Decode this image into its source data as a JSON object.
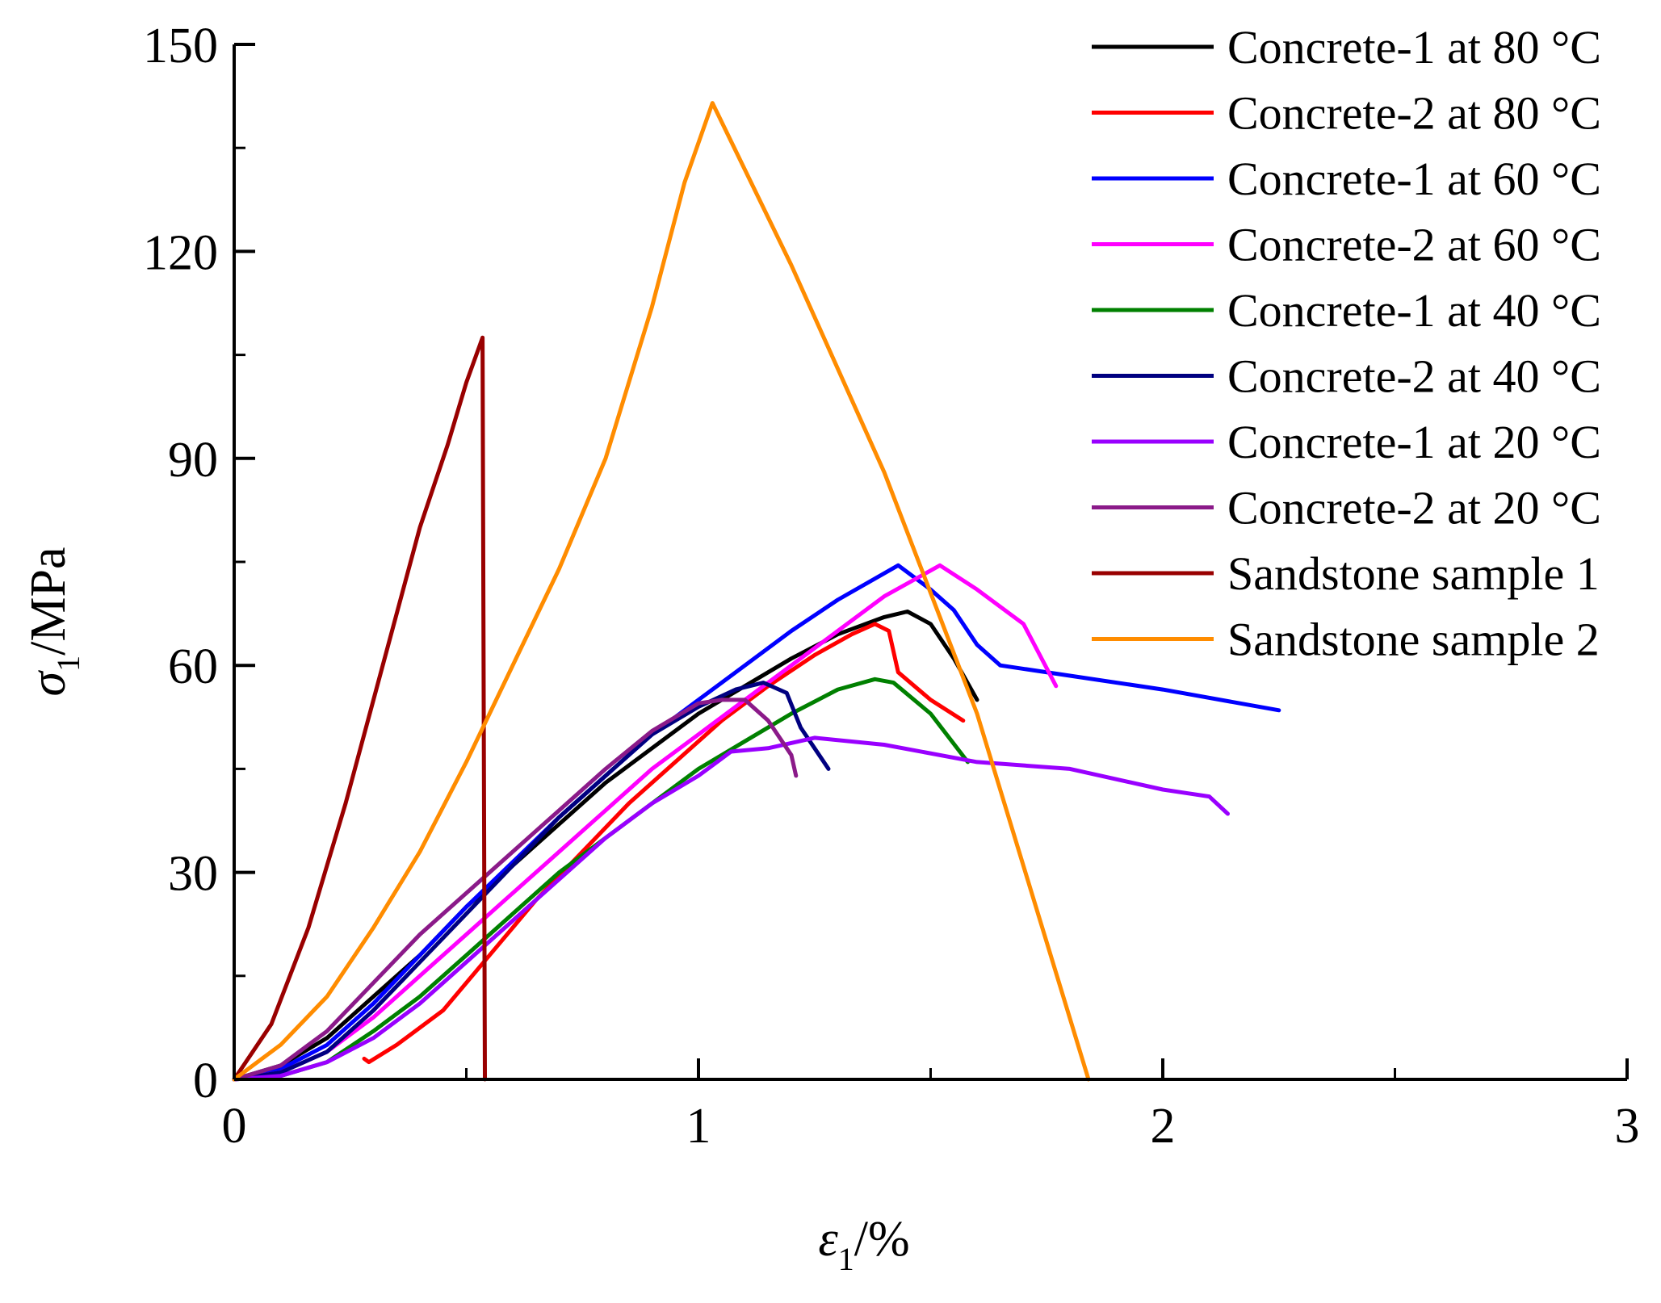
{
  "chart_data": {
    "type": "line",
    "xlabel": {
      "symbol": "ε",
      "sub": "1",
      "unit": "/%"
    },
    "ylabel": {
      "symbol": "σ",
      "sub": "1",
      "unit": "/MPa"
    },
    "xlim": [
      0,
      3
    ],
    "ylim": [
      0,
      150
    ],
    "xticks": [
      0,
      1,
      2,
      3
    ],
    "xtick_labels": [
      "0",
      "1",
      "2",
      "3"
    ],
    "yticks": [
      0,
      30,
      60,
      90,
      120,
      150
    ],
    "ytick_labels": [
      "0",
      "30",
      "60",
      "90",
      "120",
      "150"
    ],
    "grid": false,
    "legend_position": "top-right",
    "series": [
      {
        "name": "Concrete-1 at 80 °C",
        "color": "#000000",
        "points": [
          [
            0,
            0
          ],
          [
            0.1,
            2
          ],
          [
            0.2,
            6
          ],
          [
            0.3,
            12
          ],
          [
            0.4,
            18
          ],
          [
            0.5,
            25
          ],
          [
            0.6,
            31
          ],
          [
            0.7,
            37
          ],
          [
            0.8,
            43
          ],
          [
            0.9,
            48
          ],
          [
            1.0,
            53
          ],
          [
            1.1,
            57
          ],
          [
            1.2,
            61
          ],
          [
            1.3,
            64.5
          ],
          [
            1.4,
            67
          ],
          [
            1.45,
            67.8
          ],
          [
            1.5,
            66
          ],
          [
            1.55,
            61
          ],
          [
            1.6,
            55
          ]
        ]
      },
      {
        "name": "Concrete-2 at 80 °C",
        "color": "#ff0000",
        "points": [
          [
            0.28,
            3
          ],
          [
            0.29,
            2.5
          ],
          [
            0.35,
            5
          ],
          [
            0.45,
            10
          ],
          [
            0.55,
            18
          ],
          [
            0.65,
            26
          ],
          [
            0.75,
            33
          ],
          [
            0.85,
            40
          ],
          [
            0.95,
            46
          ],
          [
            1.05,
            52
          ],
          [
            1.15,
            57
          ],
          [
            1.25,
            61.5
          ],
          [
            1.33,
            64.5
          ],
          [
            1.38,
            66
          ],
          [
            1.41,
            65
          ],
          [
            1.43,
            59
          ],
          [
            1.5,
            55
          ],
          [
            1.57,
            52
          ]
        ]
      },
      {
        "name": "Concrete-1 at 60 °C",
        "color": "#0000ff",
        "points": [
          [
            0,
            0
          ],
          [
            0.1,
            1.5
          ],
          [
            0.2,
            5
          ],
          [
            0.3,
            11
          ],
          [
            0.4,
            18
          ],
          [
            0.5,
            25
          ],
          [
            0.6,
            31.5
          ],
          [
            0.7,
            38
          ],
          [
            0.8,
            44
          ],
          [
            0.9,
            50
          ],
          [
            1.0,
            55
          ],
          [
            1.1,
            60
          ],
          [
            1.2,
            65
          ],
          [
            1.3,
            69.5
          ],
          [
            1.43,
            74.5
          ],
          [
            1.5,
            71
          ],
          [
            1.55,
            68
          ],
          [
            1.6,
            63
          ],
          [
            1.65,
            60
          ],
          [
            1.8,
            58.5
          ],
          [
            2.0,
            56.5
          ],
          [
            2.25,
            53.5
          ]
        ]
      },
      {
        "name": "Concrete-2 at 60 °C",
        "color": "#ff00ff",
        "points": [
          [
            0,
            0
          ],
          [
            0.1,
            1
          ],
          [
            0.2,
            4
          ],
          [
            0.3,
            9
          ],
          [
            0.4,
            15
          ],
          [
            0.5,
            21
          ],
          [
            0.6,
            27
          ],
          [
            0.7,
            33
          ],
          [
            0.8,
            39
          ],
          [
            0.9,
            45
          ],
          [
            1.0,
            50
          ],
          [
            1.1,
            55
          ],
          [
            1.2,
            60
          ],
          [
            1.3,
            65
          ],
          [
            1.4,
            70
          ],
          [
            1.52,
            74.5
          ],
          [
            1.6,
            71
          ],
          [
            1.7,
            66
          ],
          [
            1.77,
            57
          ]
        ]
      },
      {
        "name": "Concrete-1 at 40 °C",
        "color": "#008000",
        "points": [
          [
            0,
            0
          ],
          [
            0.1,
            0.5
          ],
          [
            0.2,
            2.5
          ],
          [
            0.3,
            7
          ],
          [
            0.4,
            12
          ],
          [
            0.5,
            18
          ],
          [
            0.6,
            24
          ],
          [
            0.7,
            30
          ],
          [
            0.8,
            35
          ],
          [
            0.9,
            40
          ],
          [
            1.0,
            45
          ],
          [
            1.1,
            49
          ],
          [
            1.2,
            53
          ],
          [
            1.3,
            56.5
          ],
          [
            1.38,
            58
          ],
          [
            1.42,
            57.5
          ],
          [
            1.5,
            53
          ],
          [
            1.58,
            46
          ]
        ]
      },
      {
        "name": "Concrete-2 at 40 °C",
        "color": "#000080",
        "points": [
          [
            0,
            0
          ],
          [
            0.1,
            1
          ],
          [
            0.2,
            4
          ],
          [
            0.3,
            10
          ],
          [
            0.4,
            17
          ],
          [
            0.5,
            24
          ],
          [
            0.6,
            31
          ],
          [
            0.7,
            38
          ],
          [
            0.8,
            44
          ],
          [
            0.9,
            50
          ],
          [
            1.0,
            54
          ],
          [
            1.08,
            56.5
          ],
          [
            1.14,
            57.5
          ],
          [
            1.19,
            56
          ],
          [
            1.22,
            51
          ],
          [
            1.25,
            48
          ],
          [
            1.28,
            45
          ]
        ]
      },
      {
        "name": "Concrete-1 at 20 °C",
        "color": "#9900ff",
        "points": [
          [
            0,
            0
          ],
          [
            0.1,
            0.5
          ],
          [
            0.2,
            2.5
          ],
          [
            0.3,
            6
          ],
          [
            0.4,
            11
          ],
          [
            0.5,
            17
          ],
          [
            0.6,
            23
          ],
          [
            0.7,
            29
          ],
          [
            0.8,
            35
          ],
          [
            0.9,
            40
          ],
          [
            1.0,
            44
          ],
          [
            1.07,
            47.5
          ],
          [
            1.15,
            48
          ],
          [
            1.25,
            49.5
          ],
          [
            1.4,
            48.5
          ],
          [
            1.6,
            46
          ],
          [
            1.8,
            45
          ],
          [
            2.0,
            42
          ],
          [
            2.05,
            41.5
          ],
          [
            2.1,
            41
          ],
          [
            2.14,
            38.5
          ]
        ]
      },
      {
        "name": "Concrete-2 at 20 °C",
        "color": "#8b1a89",
        "points": [
          [
            0,
            0
          ],
          [
            0.1,
            2
          ],
          [
            0.2,
            7
          ],
          [
            0.3,
            14
          ],
          [
            0.4,
            21
          ],
          [
            0.5,
            27
          ],
          [
            0.6,
            33
          ],
          [
            0.7,
            39
          ],
          [
            0.8,
            45
          ],
          [
            0.9,
            50.5
          ],
          [
            1.0,
            54.5
          ],
          [
            1.05,
            55
          ],
          [
            1.1,
            55
          ],
          [
            1.15,
            52
          ],
          [
            1.2,
            47
          ],
          [
            1.21,
            44
          ]
        ]
      },
      {
        "name": "Sandstone sample 1",
        "color": "#990000",
        "points": [
          [
            0,
            0
          ],
          [
            0.08,
            8
          ],
          [
            0.16,
            22
          ],
          [
            0.24,
            40
          ],
          [
            0.32,
            60
          ],
          [
            0.4,
            80
          ],
          [
            0.46,
            92
          ],
          [
            0.5,
            101
          ],
          [
            0.535,
            107.5
          ],
          [
            0.54,
            0
          ]
        ]
      },
      {
        "name": "Sandstone sample 2",
        "color": "#ff8c00",
        "points": [
          [
            0,
            0
          ],
          [
            0.1,
            5
          ],
          [
            0.2,
            12
          ],
          [
            0.3,
            22
          ],
          [
            0.4,
            33
          ],
          [
            0.5,
            46
          ],
          [
            0.6,
            60
          ],
          [
            0.7,
            74
          ],
          [
            0.8,
            90
          ],
          [
            0.9,
            112
          ],
          [
            0.97,
            130
          ],
          [
            1.03,
            141.5
          ],
          [
            1.2,
            118
          ],
          [
            1.4,
            88
          ],
          [
            1.6,
            53
          ],
          [
            1.84,
            0
          ]
        ]
      }
    ]
  }
}
